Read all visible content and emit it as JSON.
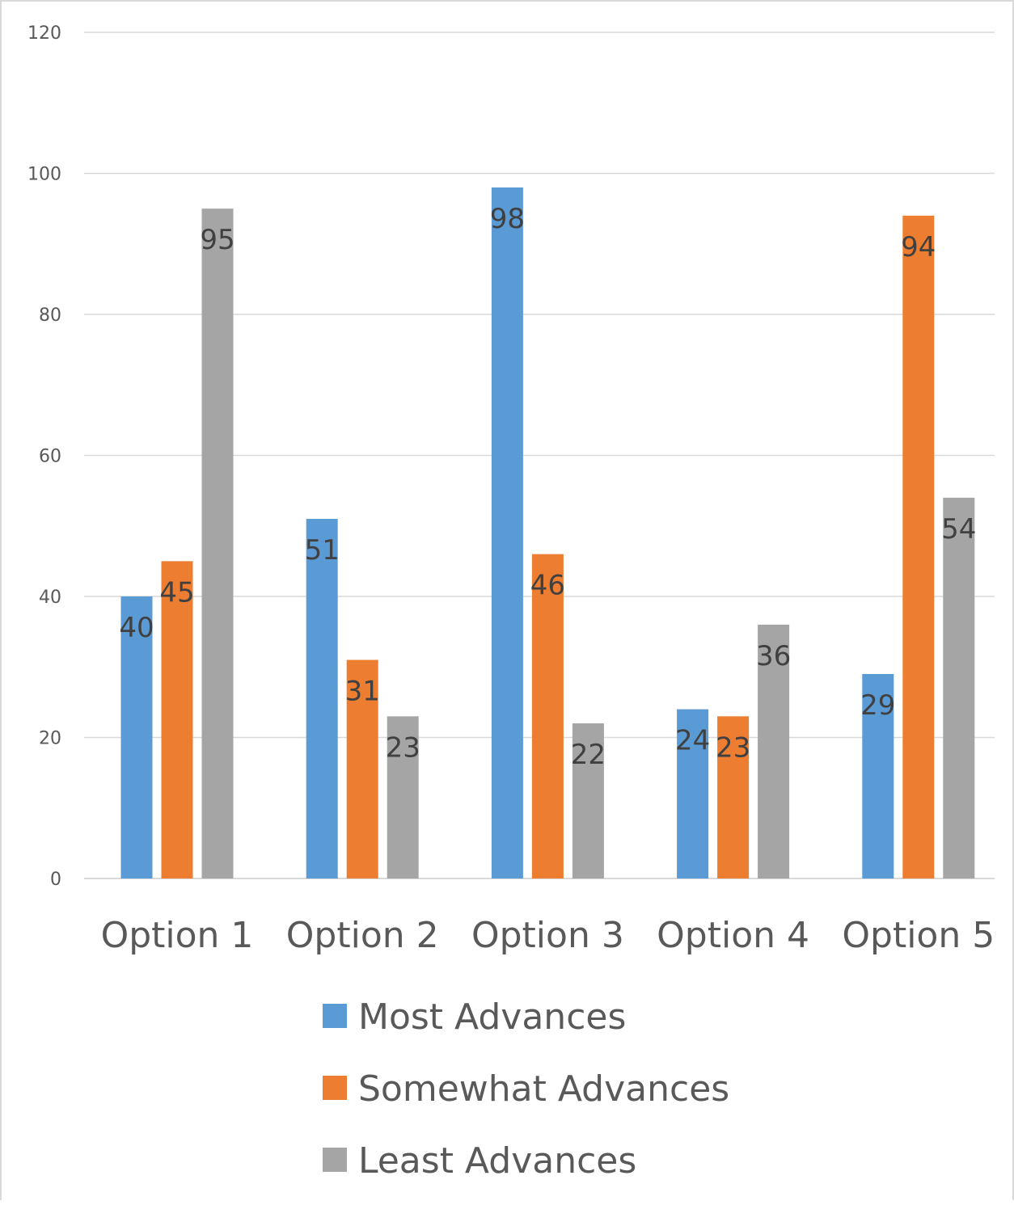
{
  "chart_data": {
    "type": "bar",
    "title": "",
    "xlabel": "",
    "ylabel": "",
    "ylim": [
      0,
      120
    ],
    "yticks": [
      0,
      20,
      40,
      60,
      80,
      100,
      120
    ],
    "grid": true,
    "legend_position": "bottom",
    "categories": [
      "Option 1",
      "Option 2",
      "Option 3",
      "Option 4",
      "Option 5"
    ],
    "series": [
      {
        "name": "Most Advances",
        "color": "#5b9bd5",
        "values": [
          40,
          51,
          98,
          24,
          29
        ]
      },
      {
        "name": "Somewhat Advances",
        "color": "#ed7d31",
        "values": [
          45,
          31,
          46,
          23,
          94
        ]
      },
      {
        "name": "Least Advances",
        "color": "#a5a5a5",
        "values": [
          95,
          23,
          22,
          36,
          54
        ]
      }
    ]
  }
}
